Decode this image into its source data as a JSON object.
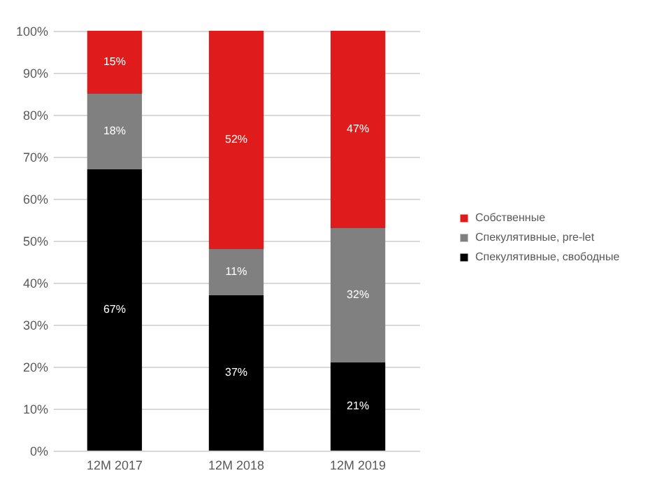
{
  "chart_data": {
    "type": "bar",
    "stacked": true,
    "categories": [
      "12M 2017",
      "12M 2018",
      "12M 2019"
    ],
    "series": [
      {
        "name": "Спекулятивные, свободные",
        "color": "#000000",
        "values": [
          67,
          37,
          21
        ],
        "value_labels": [
          "67%",
          "37%",
          "21%"
        ]
      },
      {
        "name": "Спекулятивные, pre-let",
        "color": "#808080",
        "values": [
          18,
          11,
          32
        ],
        "value_labels": [
          "18%",
          "11%",
          "32%"
        ]
      },
      {
        "name": "Собственные",
        "color": "#e01b1b",
        "values": [
          15,
          52,
          47
        ],
        "value_labels": [
          "15%",
          "52%",
          "47%"
        ]
      }
    ],
    "ylim": [
      0,
      100
    ],
    "yticks": [
      {
        "value": 0,
        "label": "0%"
      },
      {
        "value": 10,
        "label": "10%"
      },
      {
        "value": 20,
        "label": "20%"
      },
      {
        "value": 30,
        "label": "30%"
      },
      {
        "value": 40,
        "label": "40%"
      },
      {
        "value": 50,
        "label": "50%"
      },
      {
        "value": 60,
        "label": "60%"
      },
      {
        "value": 70,
        "label": "70%"
      },
      {
        "value": 80,
        "label": "80%"
      },
      {
        "value": 90,
        "label": "90%"
      },
      {
        "value": 100,
        "label": "100%"
      }
    ],
    "grid": "y",
    "legend": "right"
  }
}
